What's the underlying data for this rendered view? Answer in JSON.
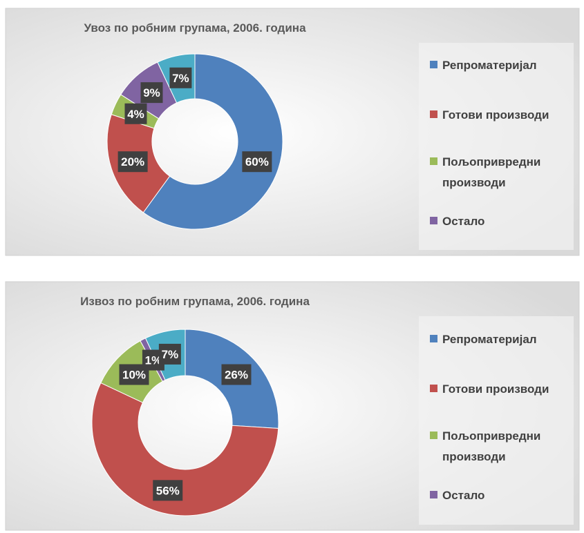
{
  "chart_data": [
    {
      "type": "donut",
      "title": "Увоз по робним групама, 2006. година",
      "categories": [
        "Репроматеријал",
        "Готови производи",
        "Пољопривредни производи",
        "Остало",
        null
      ],
      "values": [
        60,
        20,
        4,
        9,
        7
      ],
      "value_labels": [
        "60%",
        "20%",
        "4%",
        "9%",
        "7%"
      ],
      "colors": [
        "#4f81bd",
        "#c0504d",
        "#9bbb59",
        "#8064a2",
        "#4bacc6"
      ]
    },
    {
      "type": "donut",
      "title": "Извоз по робним групама, 2006. година",
      "categories": [
        "Репроматеријал",
        "Готови производи",
        "Пољопривредни производи",
        "Остало",
        null
      ],
      "values": [
        26,
        56,
        10,
        1,
        7
      ],
      "value_labels": [
        "26%",
        "56%",
        "10%",
        "1%",
        "7%"
      ],
      "colors": [
        "#4f81bd",
        "#c0504d",
        "#9bbb59",
        "#8064a2",
        "#4bacc6"
      ]
    }
  ]
}
